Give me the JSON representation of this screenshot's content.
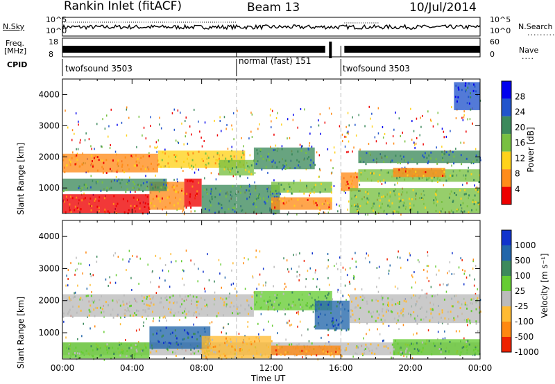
{
  "header": {
    "station": "Rankin Inlet (fitACF)",
    "beam": "Beam 13",
    "date": "10/Jul/2014"
  },
  "summary": {
    "nsky_label": "N.Sky",
    "nsky_ticks": [
      "10^5",
      "10^0"
    ],
    "nsearch_label": "N.Search",
    "nsearch_ticks": [
      "10^5",
      "10^0"
    ],
    "freq_label_1": "Freq.",
    "freq_label_2": "[MHz]",
    "freq_ticks": [
      "18",
      "8"
    ],
    "nave_label": "Nave",
    "nave_ticks": [
      "60",
      "0"
    ],
    "cpid_label": "CPID",
    "cpid_segments": [
      {
        "label": "twofsound 3503",
        "start": 0,
        "end": 10
      },
      {
        "label": "normal (fast) 151",
        "start": 10,
        "end": 16
      },
      {
        "label": "twofsound 3503",
        "start": 16,
        "end": 24
      }
    ]
  },
  "chart_data": [
    {
      "type": "heatmap",
      "quantity": "Power",
      "ylabel": "Slant Range [km]",
      "xlabel": "Time UT",
      "xlim": [
        0,
        24
      ],
      "ylim": [
        180,
        4500
      ],
      "y_ticks": [
        1000,
        2000,
        3000,
        4000
      ],
      "x_ticks": [
        "00:00",
        "04:00",
        "08:00",
        "12:00",
        "16:00",
        "20:00",
        "00:00"
      ],
      "colorbar_label": "Power [dB]",
      "colorbar_ticks": [
        "28",
        "24",
        "20",
        "16",
        "12",
        "8",
        "4"
      ],
      "colors": [
        "#0000ee",
        "#2255cc",
        "#3d8a5c",
        "#79c041",
        "#ffd21a",
        "#ff8c1a",
        "#ee0000"
      ],
      "regions": [
        {
          "t0": 0.0,
          "t1": 5.0,
          "r0": 200,
          "r1": 800,
          "level": 6
        },
        {
          "t0": 5.0,
          "t1": 7.0,
          "r0": 300,
          "r1": 1200,
          "level": 5
        },
        {
          "t0": 7.0,
          "t1": 8.0,
          "r0": 400,
          "r1": 1300,
          "level": 6
        },
        {
          "t0": 0.0,
          "t1": 6.0,
          "r0": 900,
          "r1": 1300,
          "level": 2
        },
        {
          "t0": 0.0,
          "t1": 5.5,
          "r0": 1500,
          "r1": 2100,
          "level": 5
        },
        {
          "t0": 5.5,
          "t1": 10.5,
          "r0": 1650,
          "r1": 2200,
          "level": 4
        },
        {
          "t0": 8.0,
          "t1": 12.5,
          "r0": 200,
          "r1": 1100,
          "level": 2
        },
        {
          "t0": 9.0,
          "t1": 11.0,
          "r0": 1400,
          "r1": 1900,
          "level": 3
        },
        {
          "t0": 11.0,
          "t1": 14.5,
          "r0": 1600,
          "r1": 2300,
          "level": 2
        },
        {
          "t0": 12.0,
          "t1": 15.5,
          "r0": 300,
          "r1": 700,
          "level": 5
        },
        {
          "t0": 12.0,
          "t1": 15.5,
          "r0": 850,
          "r1": 1200,
          "level": 3
        },
        {
          "t0": 16.0,
          "t1": 17.0,
          "r0": 900,
          "r1": 1500,
          "level": 5
        },
        {
          "t0": 16.5,
          "t1": 24.0,
          "r0": 200,
          "r1": 1000,
          "level": 3
        },
        {
          "t0": 17.0,
          "t1": 24.0,
          "r0": 1200,
          "r1": 1600,
          "level": 3
        },
        {
          "t0": 19.0,
          "t1": 22.0,
          "r0": 1350,
          "r1": 1650,
          "level": 5
        },
        {
          "t0": 17.0,
          "t1": 24.0,
          "r0": 1800,
          "r1": 2200,
          "level": 2
        },
        {
          "t0": 22.5,
          "t1": 24.0,
          "r0": 3500,
          "r1": 4400,
          "level": 1
        }
      ]
    },
    {
      "type": "heatmap",
      "quantity": "Velocity",
      "ylabel": "Slant Range [km]",
      "xlabel": "Time UT",
      "xlim": [
        0,
        24
      ],
      "ylim": [
        180,
        4500
      ],
      "y_ticks": [
        1000,
        2000,
        3000,
        4000
      ],
      "x_ticks": [
        "00:00",
        "04:00",
        "08:00",
        "12:00",
        "16:00",
        "20:00",
        "00:00"
      ],
      "colorbar_label": "Velocity [m s⁻¹]",
      "colorbar_ticks": [
        "1000",
        "500",
        "100",
        "25",
        "-25",
        "-100",
        "-500",
        "-1000"
      ],
      "colors": [
        "#1133cc",
        "#2266aa",
        "#3d8a5c",
        "#66cc33",
        "#bbbbbb",
        "#ffbb33",
        "#ff8811",
        "#ee2200"
      ],
      "regions": [
        {
          "t0": 0.0,
          "t1": 24.0,
          "r0": 300,
          "r1": 700,
          "level": 4
        },
        {
          "t0": 0.0,
          "t1": 5.0,
          "r0": 200,
          "r1": 700,
          "level": 3
        },
        {
          "t0": 5.0,
          "t1": 8.5,
          "r0": 500,
          "r1": 1200,
          "level": 1
        },
        {
          "t0": 8.0,
          "t1": 12.0,
          "r0": 200,
          "r1": 900,
          "level": 5
        },
        {
          "t0": 0.0,
          "t1": 11.0,
          "r0": 1500,
          "r1": 2200,
          "level": 4
        },
        {
          "t0": 11.0,
          "t1": 15.5,
          "r0": 1700,
          "r1": 2300,
          "level": 3
        },
        {
          "t0": 14.5,
          "t1": 16.5,
          "r0": 1100,
          "r1": 2000,
          "level": 1
        },
        {
          "t0": 12.0,
          "t1": 16.0,
          "r0": 300,
          "r1": 600,
          "level": 6
        },
        {
          "t0": 16.5,
          "t1": 24.0,
          "r0": 1300,
          "r1": 2200,
          "level": 4
        },
        {
          "t0": 19.0,
          "t1": 24.0,
          "r0": 300,
          "r1": 800,
          "level": 3
        }
      ]
    }
  ]
}
